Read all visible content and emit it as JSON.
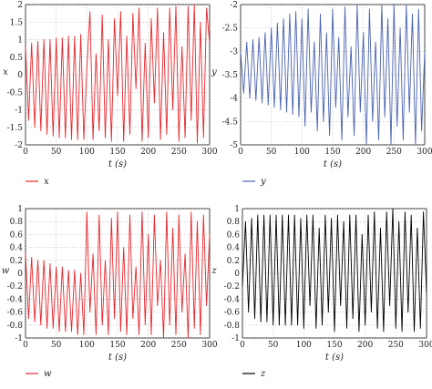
{
  "chart_data": [
    {
      "type": "line",
      "xlabel": "t (s)",
      "ylabel": "x",
      "xlim": [
        0,
        300
      ],
      "ylim": [
        -2,
        2
      ],
      "xticks": [
        "0",
        "50",
        "100",
        "150",
        "200",
        "250",
        "300"
      ],
      "yticks": [
        "2",
        "1.5",
        "1",
        "0.5",
        "0",
        "-0.5",
        "-1",
        "-1.5",
        "-2"
      ],
      "grid": true,
      "legend_position": "below-left",
      "color": "#e8272d",
      "series": [
        {
          "name": "x",
          "x": [
            0,
            5,
            10,
            15,
            20,
            25,
            30,
            35,
            40,
            45,
            50,
            55,
            60,
            65,
            70,
            75,
            80,
            85,
            90,
            95,
            100,
            105,
            110,
            115,
            120,
            125,
            130,
            135,
            140,
            145,
            150,
            155,
            160,
            165,
            170,
            175,
            180,
            185,
            190,
            195,
            200,
            205,
            210,
            215,
            220,
            225,
            230,
            235,
            240,
            245,
            250,
            255,
            260,
            265,
            270,
            275,
            280,
            285,
            290,
            295,
            300
          ],
          "values": [
            0.8,
            -1.3,
            0.9,
            -1.5,
            0.95,
            -1.6,
            1.0,
            -1.7,
            1.0,
            -1.75,
            1.05,
            -1.8,
            1.05,
            -1.8,
            1.1,
            -1.85,
            1.1,
            -1.85,
            1.15,
            -1.85,
            0.2,
            1.8,
            -1.85,
            0.6,
            -1.6,
            1.7,
            -1.8,
            1.0,
            -1.9,
            1.6,
            -0.6,
            1.8,
            -1.9,
            1.1,
            -1.7,
            1.75,
            -0.4,
            1.9,
            -1.9,
            0.9,
            -1.8,
            1.6,
            -0.8,
            1.9,
            -1.85,
            1.2,
            -1.7,
            1.9,
            -1.0,
            1.95,
            -1.9,
            0.8,
            -1.8,
            1.95,
            -1.3,
            2.0,
            -1.95,
            1.5,
            -1.8,
            1.9,
            0.9
          ]
        }
      ]
    },
    {
      "type": "line",
      "xlabel": "t (s)",
      "ylabel": "y",
      "xlim": [
        0,
        300
      ],
      "ylim": [
        -5,
        -2
      ],
      "xticks": [
        "0",
        "50",
        "100",
        "150",
        "200",
        "250",
        "300"
      ],
      "yticks": [
        "-2",
        "-2.5",
        "-3",
        "-3.5",
        "-4",
        "-4.5",
        "-5"
      ],
      "grid": true,
      "legend_position": "below-left",
      "color": "#4a63b0",
      "series": [
        {
          "name": "y",
          "x": [
            0,
            5,
            10,
            15,
            20,
            25,
            30,
            35,
            40,
            45,
            50,
            55,
            60,
            65,
            70,
            75,
            80,
            85,
            90,
            95,
            100,
            105,
            110,
            115,
            120,
            125,
            130,
            135,
            140,
            145,
            150,
            155,
            160,
            165,
            170,
            175,
            180,
            185,
            190,
            195,
            200,
            205,
            210,
            215,
            220,
            225,
            230,
            235,
            240,
            245,
            250,
            255,
            260,
            265,
            270,
            275,
            280,
            285,
            290,
            295,
            300
          ],
          "values": [
            -3.0,
            -3.9,
            -2.8,
            -4.0,
            -2.75,
            -4.05,
            -2.7,
            -4.1,
            -2.6,
            -4.15,
            -2.5,
            -4.2,
            -2.4,
            -4.25,
            -2.3,
            -4.3,
            -2.2,
            -4.35,
            -2.15,
            -4.4,
            -2.3,
            -4.6,
            -2.1,
            -4.3,
            -2.8,
            -4.7,
            -2.2,
            -4.5,
            -2.6,
            -4.8,
            -2.1,
            -4.2,
            -2.7,
            -4.9,
            -2.05,
            -4.4,
            -2.9,
            -4.8,
            -2.0,
            -4.3,
            -2.6,
            -5.0,
            -2.1,
            -4.5,
            -2.8,
            -4.9,
            -2.0,
            -4.4,
            -2.3,
            -5.0,
            -2.0,
            -4.6,
            -2.5,
            -4.9,
            -2.0,
            -4.3,
            -2.2,
            -5.0,
            -2.1,
            -4.7,
            -3.0
          ]
        }
      ]
    },
    {
      "type": "line",
      "xlabel": "t (s)",
      "ylabel": "w",
      "xlim": [
        0,
        300
      ],
      "ylim": [
        -1,
        1
      ],
      "xticks": [
        "0",
        "50",
        "100",
        "150",
        "200",
        "250",
        "300"
      ],
      "yticks": [
        "1",
        "0.8",
        "0.6",
        "0.4",
        "0.2",
        "0",
        "-0.2",
        "-0.4",
        "-0.6",
        "-0.8",
        "-1"
      ],
      "grid": true,
      "legend_position": "below-left",
      "color": "#e8272d",
      "series": [
        {
          "name": "w",
          "x": [
            0,
            5,
            10,
            15,
            20,
            25,
            30,
            35,
            40,
            45,
            50,
            55,
            60,
            65,
            70,
            75,
            80,
            85,
            90,
            95,
            100,
            105,
            110,
            115,
            120,
            125,
            130,
            135,
            140,
            145,
            150,
            155,
            160,
            165,
            170,
            175,
            180,
            185,
            190,
            195,
            200,
            205,
            210,
            215,
            220,
            225,
            230,
            235,
            240,
            245,
            250,
            255,
            260,
            265,
            270,
            275,
            280,
            285,
            290,
            295,
            300
          ],
          "values": [
            0.3,
            -0.7,
            0.25,
            -0.75,
            0.2,
            -0.8,
            0.2,
            -0.85,
            0.15,
            -0.85,
            0.1,
            -0.9,
            0.1,
            -0.9,
            0.05,
            -0.9,
            0.05,
            -0.95,
            0.0,
            -0.95,
            0.95,
            -0.6,
            0.3,
            -0.95,
            0.9,
            -0.8,
            0.2,
            -0.95,
            0.85,
            -0.7,
            0.95,
            -0.9,
            0.4,
            -0.95,
            0.9,
            -0.7,
            0.1,
            -0.95,
            0.95,
            -0.8,
            0.6,
            -0.95,
            0.9,
            -0.5,
            0.2,
            -1.0,
            0.95,
            -0.8,
            0.7,
            -0.95,
            0.9,
            -0.6,
            0.3,
            -1.0,
            0.95,
            -0.85,
            0.8,
            -0.95,
            0.9,
            -0.5,
            0.6
          ]
        }
      ]
    },
    {
      "type": "line",
      "xlabel": "t (s)",
      "ylabel": "z",
      "xlim": [
        0,
        300
      ],
      "ylim": [
        -1,
        1
      ],
      "xticks": [
        "0",
        "50",
        "100",
        "150",
        "200",
        "250",
        "300"
      ],
      "yticks": [
        "1",
        "0.8",
        "0.6",
        "0.4",
        "0.2",
        "0",
        "-0.2",
        "-0.4",
        "-0.6",
        "-0.8",
        "-1"
      ],
      "grid": true,
      "legend_position": "below-left",
      "color": "#000000",
      "series": [
        {
          "name": "z",
          "x": [
            0,
            5,
            10,
            15,
            20,
            25,
            30,
            35,
            40,
            45,
            50,
            55,
            60,
            65,
            70,
            75,
            80,
            85,
            90,
            95,
            100,
            105,
            110,
            115,
            120,
            125,
            130,
            135,
            140,
            145,
            150,
            155,
            160,
            165,
            170,
            175,
            180,
            185,
            190,
            195,
            200,
            205,
            210,
            215,
            220,
            225,
            230,
            235,
            240,
            245,
            250,
            255,
            260,
            265,
            270,
            275,
            280,
            285,
            290,
            295,
            300
          ],
          "values": [
            -0.2,
            0.8,
            -0.6,
            0.85,
            -0.7,
            0.9,
            -0.75,
            0.9,
            -0.75,
            0.9,
            -0.8,
            0.9,
            -0.8,
            0.9,
            -0.8,
            0.9,
            -0.8,
            0.9,
            -0.8,
            0.85,
            -0.85,
            0.9,
            -0.5,
            0.9,
            -0.85,
            0.7,
            -0.8,
            0.9,
            -0.6,
            0.85,
            -0.9,
            0.9,
            -0.5,
            0.8,
            -0.85,
            0.9,
            -0.7,
            0.9,
            -0.9,
            0.6,
            -0.8,
            0.9,
            -0.6,
            0.95,
            -0.85,
            0.7,
            -0.9,
            0.95,
            -0.5,
            1.0,
            -0.85,
            0.8,
            -0.9,
            0.95,
            -0.6,
            0.9,
            -0.9,
            0.7,
            -0.85,
            0.95,
            -0.3
          ]
        }
      ]
    }
  ]
}
